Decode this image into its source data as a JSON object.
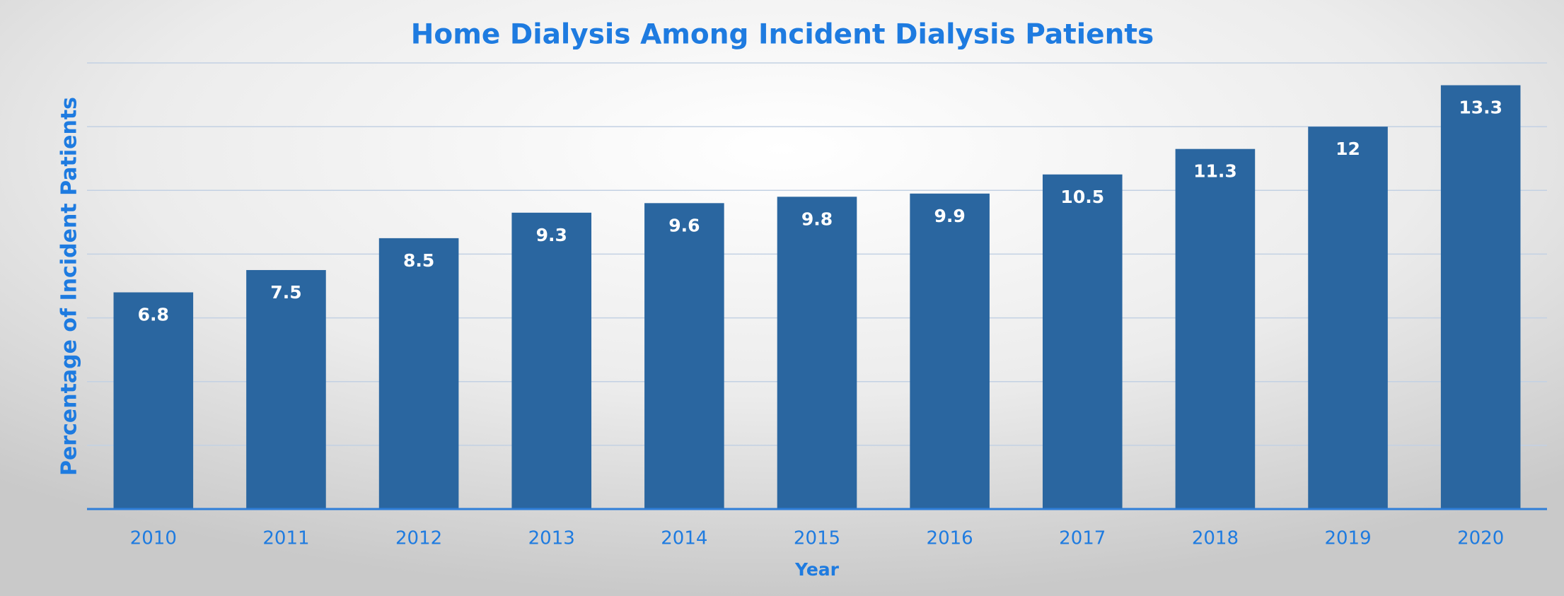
{
  "chart_data": {
    "type": "bar",
    "title": "Home Dialysis Among Incident Dialysis Patients",
    "x_label": "Year",
    "y_label": "Percentage of Incident Patients",
    "categories": [
      "2010",
      "2011",
      "2012",
      "2013",
      "2014",
      "2015",
      "2016",
      "2017",
      "2018",
      "2019",
      "2020"
    ],
    "values": [
      6.8,
      7.5,
      8.5,
      9.3,
      9.6,
      9.8,
      9.9,
      10.5,
      11.3,
      12,
      13.3
    ],
    "color": "#2a66a0",
    "ylim": [
      0,
      14
    ],
    "yticks": [
      0,
      2,
      4,
      6,
      8,
      10,
      12,
      14
    ],
    "grid": true
  }
}
